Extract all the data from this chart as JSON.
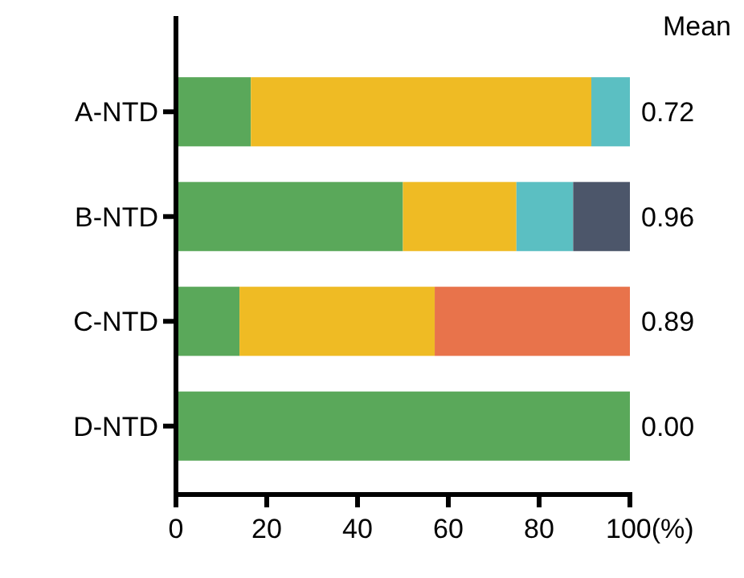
{
  "chart_data": {
    "type": "bar",
    "orientation": "horizontal",
    "stacked": true,
    "categories": [
      "A-NTD",
      "B-NTD",
      "C-NTD",
      "D-NTD"
    ],
    "series": [
      {
        "color": "#5aa85a",
        "values": [
          16.5,
          50,
          14,
          100
        ]
      },
      {
        "color": "#efbb24",
        "values": [
          75,
          25,
          43,
          null
        ]
      },
      {
        "color": "#5bbfc2",
        "values": [
          8.5,
          12.5,
          null,
          null
        ]
      },
      {
        "color": "#4c566a",
        "values": [
          null,
          12.5,
          null,
          null
        ]
      },
      {
        "color": "#e8734b",
        "values": [
          null,
          null,
          43,
          null
        ]
      }
    ],
    "xlim": [
      0,
      100
    ],
    "xticks": [
      0,
      20,
      40,
      60,
      80,
      {
        "value": 100,
        "label": "100(%)"
      }
    ],
    "annotations": [
      "Mean",
      "0.72",
      "0.96",
      "0.89",
      "0.00"
    ],
    "grid": false
  }
}
